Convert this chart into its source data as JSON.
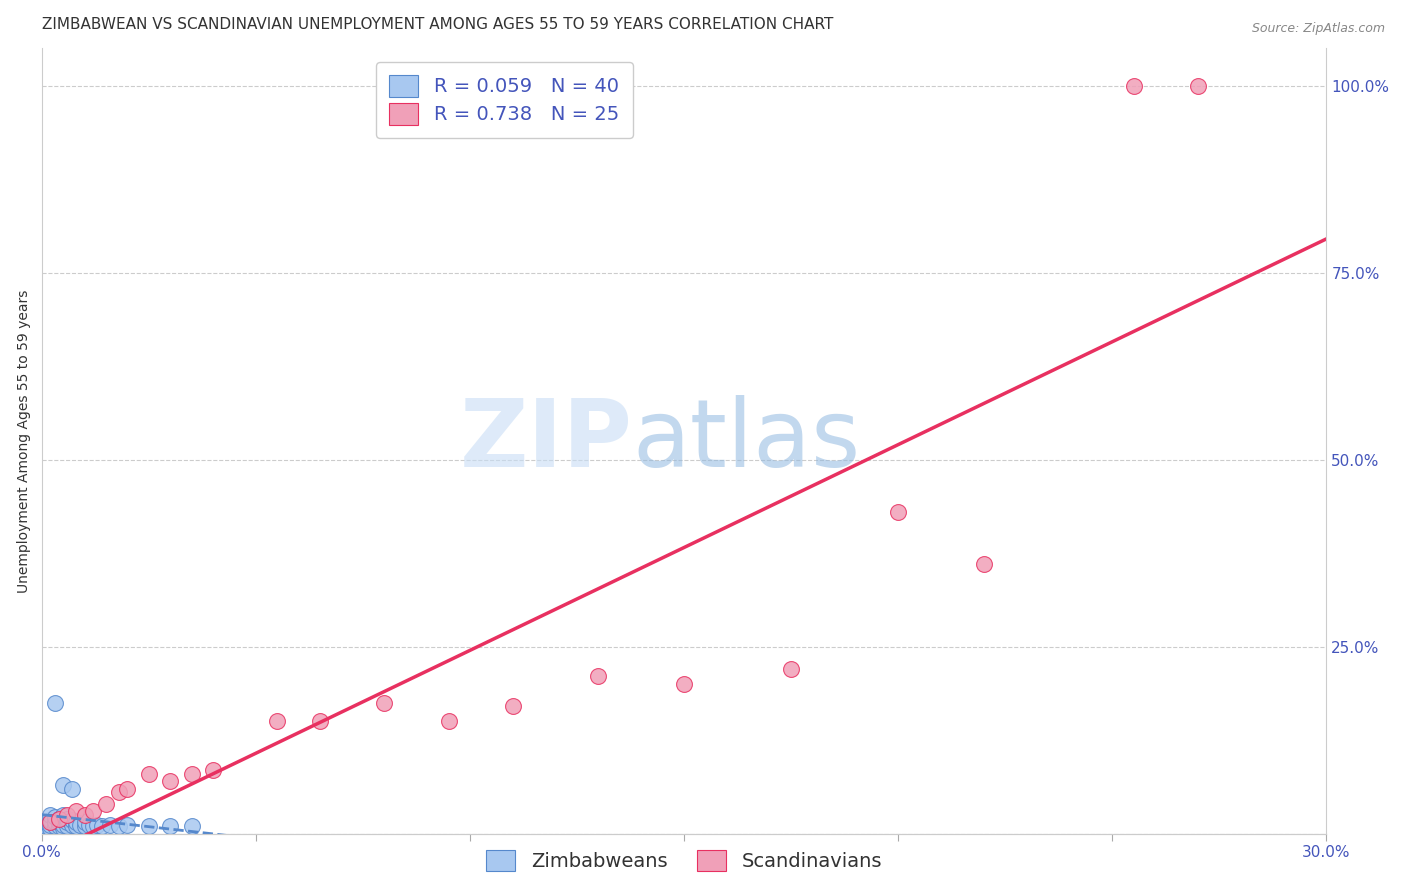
{
  "title": "ZIMBABWEAN VS SCANDINAVIAN UNEMPLOYMENT AMONG AGES 55 TO 59 YEARS CORRELATION CHART",
  "source": "Source: ZipAtlas.com",
  "ylabel": "Unemployment Among Ages 55 to 59 years",
  "xlim": [
    0.0,
    0.3
  ],
  "ylim": [
    0.0,
    1.05
  ],
  "xticks": [
    0.0,
    0.05,
    0.1,
    0.15,
    0.2,
    0.25,
    0.3
  ],
  "xticklabels": [
    "0.0%",
    "",
    "",
    "",
    "",
    "",
    "30.0%"
  ],
  "yticks_right": [
    0.0,
    0.25,
    0.5,
    0.75,
    1.0
  ],
  "yticklabels_right": [
    "",
    "25.0%",
    "50.0%",
    "75.0%",
    "100.0%"
  ],
  "zimbabwean_color": "#a8c8f0",
  "scandinavian_color": "#f0a0b8",
  "zimbabwean_line_color": "#5588cc",
  "scandinavian_line_color": "#e83060",
  "zimbabwean_x": [
    0.001,
    0.001,
    0.001,
    0.002,
    0.002,
    0.002,
    0.002,
    0.003,
    0.003,
    0.003,
    0.004,
    0.004,
    0.004,
    0.005,
    0.005,
    0.005,
    0.005,
    0.006,
    0.006,
    0.006,
    0.007,
    0.007,
    0.008,
    0.008,
    0.009,
    0.01,
    0.01,
    0.011,
    0.012,
    0.013,
    0.014,
    0.016,
    0.018,
    0.02,
    0.025,
    0.03,
    0.035,
    0.003,
    0.005,
    0.007
  ],
  "zimbabwean_y": [
    0.005,
    0.01,
    0.015,
    0.008,
    0.012,
    0.018,
    0.025,
    0.01,
    0.015,
    0.022,
    0.01,
    0.015,
    0.02,
    0.008,
    0.012,
    0.018,
    0.025,
    0.01,
    0.015,
    0.02,
    0.012,
    0.018,
    0.01,
    0.015,
    0.012,
    0.01,
    0.015,
    0.012,
    0.01,
    0.012,
    0.01,
    0.012,
    0.01,
    0.012,
    0.01,
    0.01,
    0.01,
    0.175,
    0.065,
    0.06
  ],
  "scandinavian_x": [
    0.002,
    0.004,
    0.006,
    0.008,
    0.01,
    0.012,
    0.015,
    0.018,
    0.02,
    0.025,
    0.03,
    0.035,
    0.04,
    0.055,
    0.065,
    0.08,
    0.095,
    0.11,
    0.13,
    0.15,
    0.175,
    0.2,
    0.22,
    0.255,
    0.27
  ],
  "scandinavian_y": [
    0.015,
    0.02,
    0.025,
    0.03,
    0.025,
    0.03,
    0.04,
    0.055,
    0.06,
    0.08,
    0.07,
    0.08,
    0.085,
    0.15,
    0.15,
    0.175,
    0.15,
    0.17,
    0.21,
    0.2,
    0.22,
    0.43,
    0.36,
    1.0,
    1.0
  ],
  "title_fontsize": 11,
  "axis_label_fontsize": 10,
  "tick_fontsize": 11,
  "legend_fontsize": 14,
  "marker_size": 130,
  "background_color": "#ffffff",
  "grid_color": "#cccccc"
}
